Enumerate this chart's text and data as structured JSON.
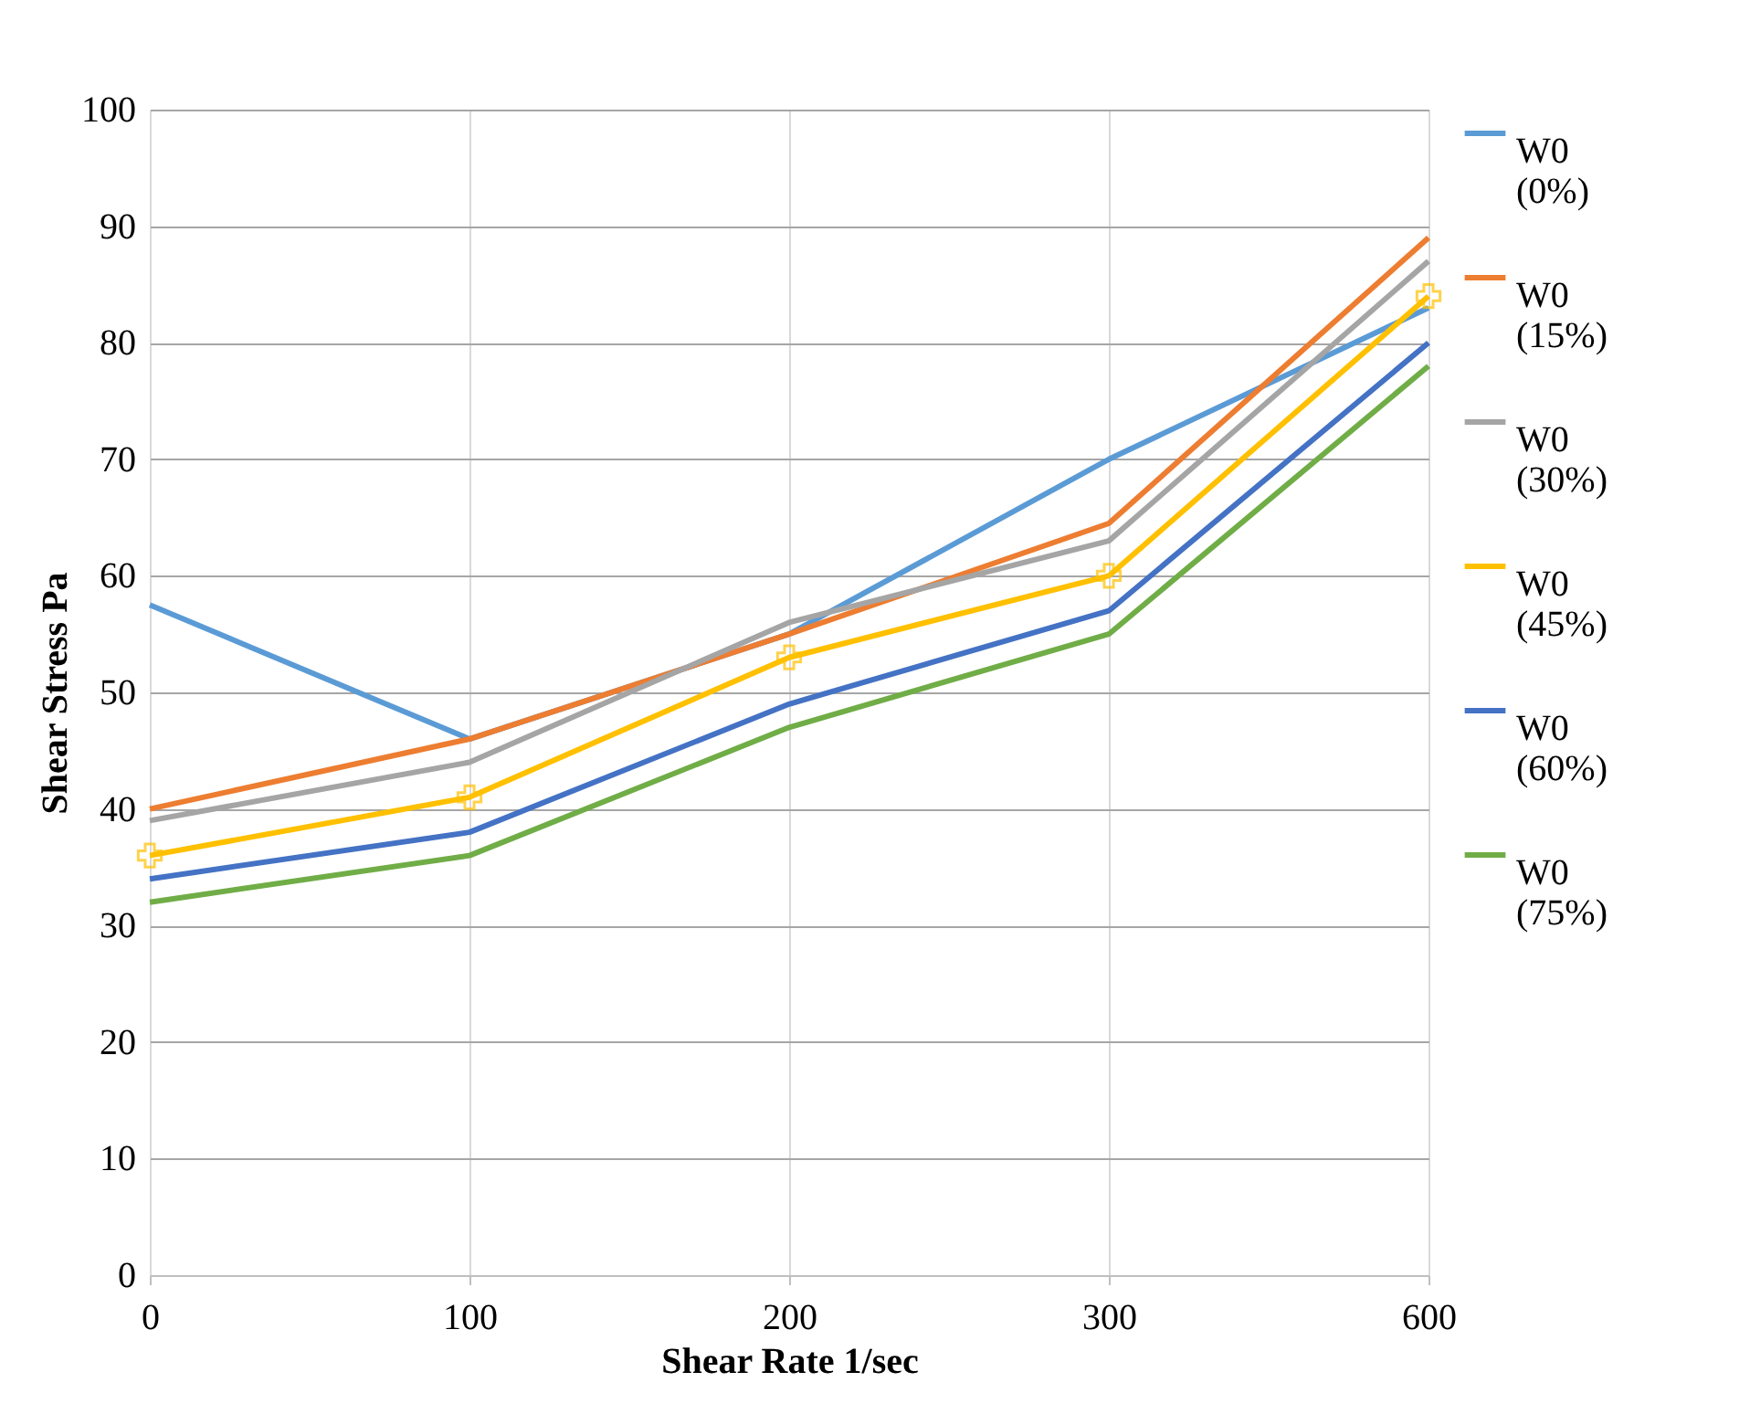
{
  "chart_data": {
    "type": "line",
    "xlabel": "Shear Rate 1/sec",
    "ylabel": "Shear Stress Pa",
    "categories": [
      "0",
      "100",
      "200",
      "300",
      "600"
    ],
    "series": [
      {
        "name": "W0 (0%)",
        "color": "#5b9bd5",
        "values": [
          57.5,
          46,
          55,
          70,
          83
        ]
      },
      {
        "name": "W0 (15%)",
        "color": "#ed7d31",
        "values": [
          40,
          46,
          55,
          64.5,
          89
        ]
      },
      {
        "name": "W0 (30%)",
        "color": "#a5a5a5",
        "values": [
          39,
          44,
          56,
          63,
          87
        ]
      },
      {
        "name": "W0 (45%)",
        "color": "#ffc000",
        "values": [
          36,
          41,
          53,
          60,
          84
        ],
        "marker": "cross"
      },
      {
        "name": "W0 (60%)",
        "color": "#4472c4",
        "values": [
          34,
          38,
          49,
          57,
          80
        ]
      },
      {
        "name": "W0 (75%)",
        "color": "#70ad47",
        "values": [
          32,
          36,
          47,
          55,
          78
        ]
      }
    ],
    "ylim": [
      0,
      100
    ],
    "yticks": [
      0,
      10,
      20,
      30,
      40,
      50,
      60,
      70,
      80,
      90,
      100
    ],
    "grid": true,
    "legend": "right"
  }
}
